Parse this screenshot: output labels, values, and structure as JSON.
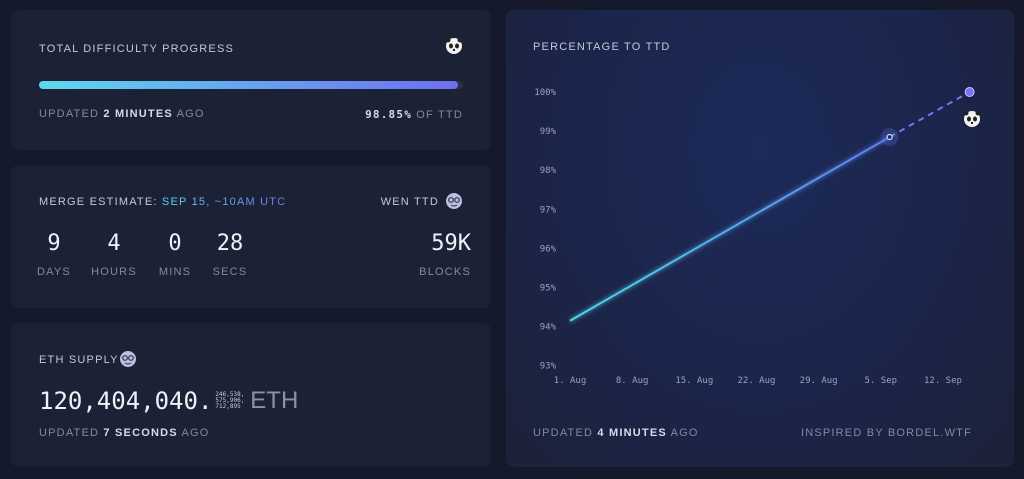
{
  "progress": {
    "title": "TOTAL DIFFICULTY PROGRESS",
    "icon": "panda-icon",
    "percent": 98.85,
    "updated_prefix": "UPDATED",
    "updated_value": "2 MINUTES",
    "updated_suffix": "AGO",
    "ttd_value": "98.85%",
    "ttd_suffix": "OF TTD"
  },
  "merge": {
    "label": "MERGE ESTIMATE:",
    "estimate": "SEP 15, ~10AM UTC",
    "wen_label": "WEN TTD",
    "icon": "nerd-face-icon",
    "countdown": [
      {
        "value": "9",
        "unit": "DAYS"
      },
      {
        "value": "4",
        "unit": "HOURS"
      },
      {
        "value": "0",
        "unit": "MINS"
      },
      {
        "value": "28",
        "unit": "SECS"
      }
    ],
    "blocks_value": "59K",
    "blocks_unit": "BLOCKS"
  },
  "supply": {
    "title": "ETH SUPPLY",
    "icon": "nerd-face-icon",
    "integer": "120,404,040.",
    "decimals": [
      "246,538,",
      "575,906,",
      "712,895"
    ],
    "unit": "ETH",
    "updated_prefix": "UPDATED",
    "updated_value": "7 SECONDS",
    "updated_suffix": "AGO"
  },
  "chart_card": {
    "title": "PERCENTAGE TO TTD",
    "updated_prefix": "UPDATED",
    "updated_value": "4 MINUTES",
    "updated_suffix": "AGO",
    "credit": "INSPIRED BY BORDEL.WTF"
  },
  "colors": {
    "line_start": "#4fd6e8",
    "line_end": "#5b7ef0",
    "projection": "#7b72f0"
  },
  "chart_data": {
    "type": "line",
    "title": "PERCENTAGE TO TTD",
    "xlabel": "",
    "ylabel": "",
    "x_ticks": [
      "1. Aug",
      "8. Aug",
      "15. Aug",
      "22. Aug",
      "29. Aug",
      "5. Sep",
      "12. Sep"
    ],
    "y_ticks": [
      "93%",
      "94%",
      "95%",
      "96%",
      "97%",
      "98%",
      "99%",
      "100%"
    ],
    "ylim": [
      93,
      100
    ],
    "xlim": [
      "Aug 1",
      "Sep 15"
    ],
    "grid": false,
    "series": [
      {
        "style": "solid",
        "points": [
          {
            "x": "Aug 1",
            "y": 94.15
          },
          {
            "x": "Sep 6",
            "y": 98.85
          }
        ]
      },
      {
        "style": "dashed",
        "points": [
          {
            "x": "Sep 6",
            "y": 98.85
          },
          {
            "x": "Sep 15",
            "y": 100
          }
        ]
      }
    ]
  }
}
